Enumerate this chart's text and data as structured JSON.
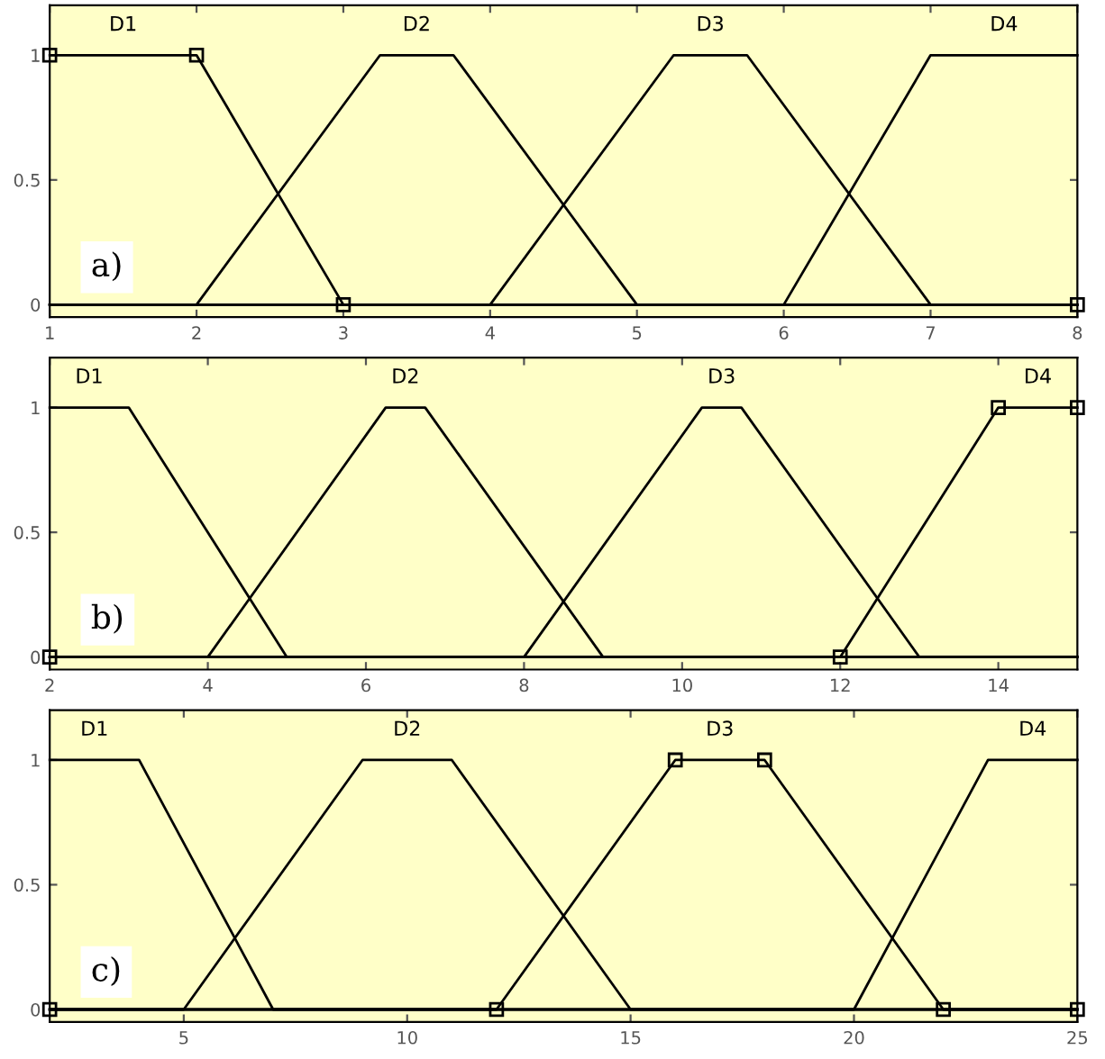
{
  "chart_data": [
    {
      "type": "line",
      "annotations": [
        "a)"
      ],
      "xlim": [
        1,
        8
      ],
      "xticks": [
        1,
        2,
        3,
        4,
        5,
        6,
        7,
        8
      ],
      "ylim": [
        -0.05,
        1.2
      ],
      "yticks": [
        0,
        0.5,
        1
      ],
      "grid": false,
      "legend": false,
      "line_style": "solid",
      "series": [
        {
          "name": "D1",
          "color": "#000000",
          "marker": "square",
          "x": [
            1,
            2,
            3,
            8
          ],
          "values": [
            1,
            1,
            0,
            0
          ]
        },
        {
          "name": "D2",
          "color": "#000000",
          "marker": "none",
          "x": [
            1,
            2,
            3.25,
            3.75,
            5,
            8
          ],
          "values": [
            0,
            0,
            1,
            1,
            0,
            0
          ]
        },
        {
          "name": "D3",
          "color": "#000000",
          "marker": "none",
          "x": [
            1,
            4,
            5.25,
            5.75,
            7,
            8
          ],
          "values": [
            0,
            0,
            1,
            1,
            0,
            0
          ]
        },
        {
          "name": "D4",
          "color": "#000000",
          "marker": "none",
          "x": [
            1,
            6,
            7,
            8
          ],
          "values": [
            0,
            0,
            1,
            1
          ]
        }
      ]
    },
    {
      "type": "line",
      "annotations": [
        "b)"
      ],
      "xlim": [
        2,
        15
      ],
      "xticks": [
        2,
        4,
        6,
        8,
        10,
        12,
        14
      ],
      "ylim": [
        -0.05,
        1.2
      ],
      "yticks": [
        0,
        0.5,
        1
      ],
      "grid": false,
      "legend": false,
      "line_style": "solid",
      "series": [
        {
          "name": "D1",
          "color": "#000000",
          "marker": "none",
          "x": [
            2,
            3,
            5,
            15
          ],
          "values": [
            1,
            1,
            0,
            0
          ]
        },
        {
          "name": "D2",
          "color": "#000000",
          "marker": "none",
          "x": [
            2,
            4,
            6.25,
            6.75,
            9,
            15
          ],
          "values": [
            0,
            0,
            1,
            1,
            0,
            0
          ]
        },
        {
          "name": "D3",
          "color": "#000000",
          "marker": "none",
          "x": [
            2,
            8,
            10.25,
            10.75,
            13,
            15
          ],
          "values": [
            0,
            0,
            1,
            1,
            0,
            0
          ]
        },
        {
          "name": "D4",
          "color": "#000000",
          "marker": "square",
          "x": [
            2,
            12,
            14,
            15
          ],
          "values": [
            0,
            0,
            1,
            1
          ]
        }
      ]
    },
    {
      "type": "line",
      "annotations": [
        "c)"
      ],
      "xlim": [
        2,
        25
      ],
      "xticks": [
        5,
        10,
        15,
        20,
        25
      ],
      "ylim": [
        -0.05,
        1.2
      ],
      "yticks": [
        0,
        0.5,
        1
      ],
      "grid": false,
      "legend": false,
      "line_style": "solid",
      "series": [
        {
          "name": "D1",
          "color": "#000000",
          "marker": "none",
          "x": [
            2,
            4,
            7,
            25
          ],
          "values": [
            1,
            1,
            0,
            0
          ]
        },
        {
          "name": "D2",
          "color": "#000000",
          "marker": "none",
          "x": [
            2,
            5,
            9,
            11,
            15,
            25
          ],
          "values": [
            0,
            0,
            1,
            1,
            0,
            0
          ]
        },
        {
          "name": "D3",
          "color": "#000000",
          "marker": "square",
          "x": [
            2,
            12,
            16,
            18,
            22,
            25
          ],
          "values": [
            0,
            0,
            1,
            1,
            0,
            0
          ]
        },
        {
          "name": "D4",
          "color": "#000000",
          "marker": "none",
          "x": [
            2,
            20,
            23,
            25
          ],
          "values": [
            0,
            0,
            1,
            1
          ]
        }
      ]
    }
  ]
}
